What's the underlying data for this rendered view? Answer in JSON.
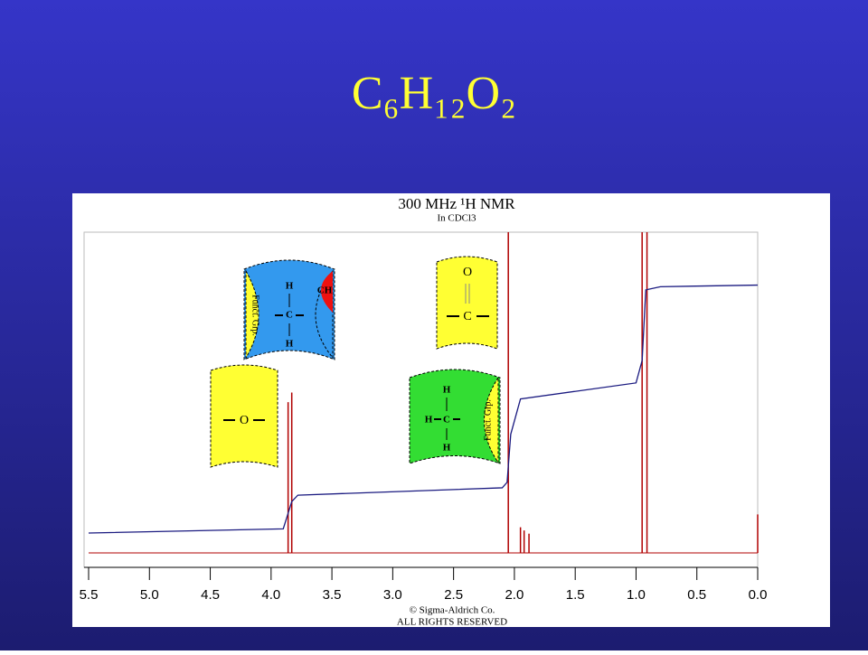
{
  "slide_title": "C₆H₁₂O₂",
  "chart_data": {
    "type": "nmr",
    "title": "300 MHz ¹H NMR",
    "subtitle": "In CDCl3",
    "xlim": [
      5.5,
      0
    ],
    "xticks": [
      5.5,
      {
        "value": 5,
        "label": "5.0"
      },
      4.5,
      {
        "value": 4,
        "label": "4.0"
      },
      3.5,
      {
        "value": 3,
        "label": "3.0"
      },
      2.5,
      {
        "value": 2,
        "label": "2.0"
      },
      1.5,
      {
        "value": 1,
        "label": "1.0"
      },
      0.5,
      {
        "value": 0,
        "label": "0.0"
      }
    ],
    "ylim": [
      0,
      100
    ],
    "peaks": {
      "color": "#b00000",
      "x": [
        3.86,
        3.83,
        2.05,
        1.95,
        1.92,
        1.88,
        0.95,
        0.91,
        0.0
      ],
      "values": [
        47,
        50,
        100,
        8,
        7,
        6,
        100,
        100,
        12
      ]
    },
    "integral": {
      "color": "#1a1a80",
      "x": [
        5.5,
        3.9,
        3.83,
        3.78,
        2.1,
        2.06,
        2.03,
        1.95,
        1.0,
        0.95,
        0.92,
        0.8,
        0.0
      ],
      "values": [
        6.2,
        7.5,
        16,
        18,
        20.3,
        22,
        37,
        48,
        53,
        60,
        82,
        83,
        83.5
      ]
    },
    "credits": [
      "© Sigma-Aldrich Co.",
      "ALL RIGHTS RESERVED"
    ]
  },
  "fragments": {
    "methylene": {
      "top": "H",
      "center": "C",
      "bottom": "H",
      "right": "CH",
      "left": "Funct. Grp."
    },
    "ether": {
      "center": "O"
    },
    "carbonyl": {
      "top": "O",
      "center": "C"
    },
    "methyl": {
      "top": "H",
      "left": "H",
      "center": "C",
      "bottom": "H",
      "right": "Funct. Grp."
    }
  }
}
